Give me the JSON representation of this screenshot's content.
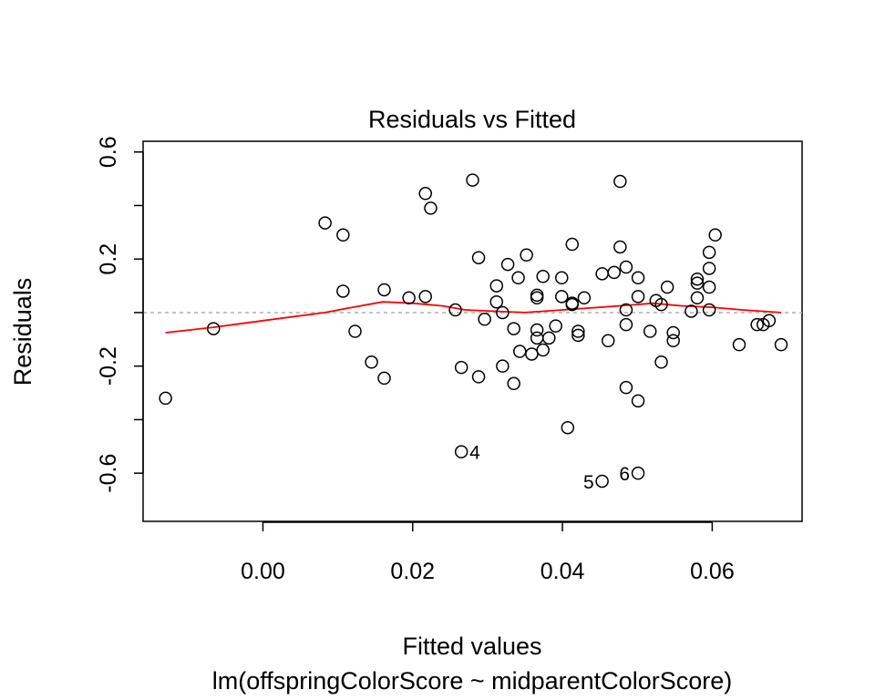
{
  "chart_data": {
    "type": "scatter",
    "title": "Residuals vs Fitted",
    "xlabel": "Fitted values",
    "subtitle": "lm(offspringColorScore ~ midparentColorScore)",
    "ylabel": "Residuals",
    "xlim": [
      -0.016,
      0.072
    ],
    "ylim": [
      -0.78,
      0.64
    ],
    "x_ticks": [
      0.0,
      0.02,
      0.04,
      0.06
    ],
    "x_tick_labels": [
      "0.00",
      "0.02",
      "0.04",
      "0.06"
    ],
    "y_ticks": [
      -0.6,
      -0.4,
      -0.2,
      0.0,
      0.2,
      0.4,
      0.6
    ],
    "y_tick_labels": [
      "-0.6",
      "",
      "-0.2",
      "",
      "0.2",
      "",
      "0.6"
    ],
    "reference_line": 0,
    "colors": {
      "points": "#000000",
      "smooth": "#ff0000",
      "reference": "#b0b0b0"
    },
    "points": [
      {
        "x": -0.013,
        "y": -0.32
      },
      {
        "x": -0.0066,
        "y": -0.06
      },
      {
        "x": 0.0083,
        "y": 0.335
      },
      {
        "x": 0.0107,
        "y": 0.29
      },
      {
        "x": 0.0107,
        "y": 0.08
      },
      {
        "x": 0.0123,
        "y": -0.07
      },
      {
        "x": 0.0145,
        "y": -0.185
      },
      {
        "x": 0.0162,
        "y": -0.245
      },
      {
        "x": 0.0162,
        "y": 0.085
      },
      {
        "x": 0.0195,
        "y": 0.055
      },
      {
        "x": 0.0217,
        "y": 0.445
      },
      {
        "x": 0.0224,
        "y": 0.39
      },
      {
        "x": 0.0217,
        "y": 0.06
      },
      {
        "x": 0.0257,
        "y": 0.01
      },
      {
        "x": 0.0265,
        "y": -0.205
      },
      {
        "x": 0.0265,
        "y": -0.52,
        "label": "4"
      },
      {
        "x": 0.028,
        "y": 0.495
      },
      {
        "x": 0.0288,
        "y": 0.205
      },
      {
        "x": 0.0288,
        "y": -0.24
      },
      {
        "x": 0.0296,
        "y": -0.025
      },
      {
        "x": 0.0312,
        "y": 0.1
      },
      {
        "x": 0.0312,
        "y": 0.04
      },
      {
        "x": 0.032,
        "y": 0.0
      },
      {
        "x": 0.032,
        "y": -0.2
      },
      {
        "x": 0.0327,
        "y": 0.18
      },
      {
        "x": 0.0335,
        "y": -0.06
      },
      {
        "x": 0.0335,
        "y": -0.265
      },
      {
        "x": 0.0341,
        "y": 0.13
      },
      {
        "x": 0.0343,
        "y": -0.145
      },
      {
        "x": 0.0352,
        "y": 0.215
      },
      {
        "x": 0.0359,
        "y": -0.155
      },
      {
        "x": 0.0366,
        "y": 0.065
      },
      {
        "x": 0.0366,
        "y": 0.055
      },
      {
        "x": 0.0366,
        "y": -0.065
      },
      {
        "x": 0.0366,
        "y": -0.095
      },
      {
        "x": 0.0374,
        "y": 0.135
      },
      {
        "x": 0.0374,
        "y": -0.14
      },
      {
        "x": 0.0382,
        "y": -0.095
      },
      {
        "x": 0.0391,
        "y": -0.05
      },
      {
        "x": 0.0399,
        "y": 0.13
      },
      {
        "x": 0.0399,
        "y": 0.06
      },
      {
        "x": 0.0407,
        "y": -0.43
      },
      {
        "x": 0.0413,
        "y": 0.255
      },
      {
        "x": 0.0413,
        "y": 0.035
      },
      {
        "x": 0.0413,
        "y": 0.03
      },
      {
        "x": 0.0421,
        "y": -0.07
      },
      {
        "x": 0.0421,
        "y": -0.085
      },
      {
        "x": 0.0429,
        "y": 0.055
      },
      {
        "x": 0.0453,
        "y": -0.63,
        "label": "5"
      },
      {
        "x": 0.0453,
        "y": 0.145
      },
      {
        "x": 0.0461,
        "y": -0.105
      },
      {
        "x": 0.0469,
        "y": 0.15
      },
      {
        "x": 0.0477,
        "y": 0.49
      },
      {
        "x": 0.0477,
        "y": 0.245
      },
      {
        "x": 0.0485,
        "y": 0.17
      },
      {
        "x": 0.0485,
        "y": 0.01
      },
      {
        "x": 0.0485,
        "y": -0.045
      },
      {
        "x": 0.0485,
        "y": -0.28
      },
      {
        "x": 0.0501,
        "y": 0.13
      },
      {
        "x": 0.0501,
        "y": 0.06
      },
      {
        "x": 0.0501,
        "y": -0.33
      },
      {
        "x": 0.0501,
        "y": -0.6,
        "label": "6"
      },
      {
        "x": 0.0517,
        "y": -0.07
      },
      {
        "x": 0.0525,
        "y": 0.045
      },
      {
        "x": 0.0532,
        "y": 0.03
      },
      {
        "x": 0.0532,
        "y": -0.185
      },
      {
        "x": 0.054,
        "y": 0.095
      },
      {
        "x": 0.0548,
        "y": -0.075
      },
      {
        "x": 0.0548,
        "y": -0.105
      },
      {
        "x": 0.0572,
        "y": 0.005
      },
      {
        "x": 0.058,
        "y": 0.125
      },
      {
        "x": 0.058,
        "y": 0.11
      },
      {
        "x": 0.058,
        "y": 0.055
      },
      {
        "x": 0.0596,
        "y": 0.225
      },
      {
        "x": 0.0596,
        "y": 0.165
      },
      {
        "x": 0.0596,
        "y": 0.095
      },
      {
        "x": 0.0596,
        "y": 0.01
      },
      {
        "x": 0.0604,
        "y": 0.29
      },
      {
        "x": 0.0636,
        "y": -0.12
      },
      {
        "x": 0.066,
        "y": -0.045
      },
      {
        "x": 0.0668,
        "y": -0.045
      },
      {
        "x": 0.0676,
        "y": -0.03
      },
      {
        "x": 0.0692,
        "y": -0.12
      }
    ],
    "smooth_line": {
      "x": [
        -0.013,
        -0.0066,
        0.0,
        0.0083,
        0.012,
        0.016,
        0.02,
        0.024,
        0.027,
        0.031,
        0.035,
        0.04,
        0.045,
        0.05,
        0.052,
        0.056,
        0.06,
        0.064,
        0.0692
      ],
      "y": [
        -0.075,
        -0.055,
        -0.03,
        0.0,
        0.02,
        0.04,
        0.035,
        0.025,
        0.01,
        0.005,
        0.0,
        0.01,
        0.02,
        0.03,
        0.035,
        0.025,
        0.02,
        0.01,
        0.0
      ]
    }
  }
}
